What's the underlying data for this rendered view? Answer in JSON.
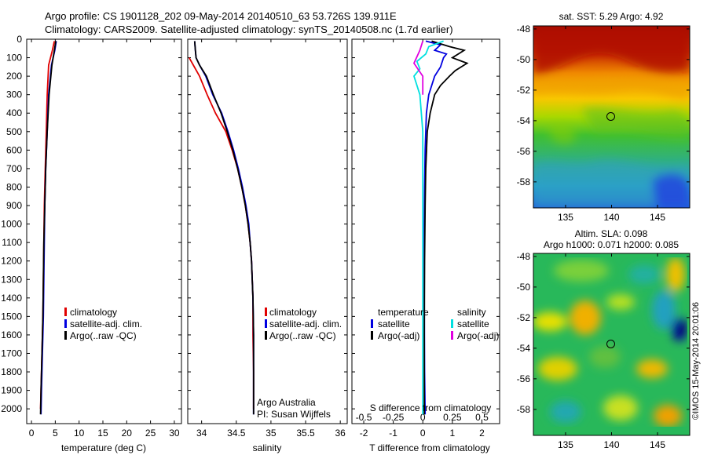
{
  "header": {
    "title_line1": "Argo profile: CS 1901128_202 09-May-2014 20140510_63 53.726S 139.911E",
    "title_line2": "Climatology: CARS2009. Satellite-adjusted climatology: synTS_20140508.nc (1.7d earlier)"
  },
  "colors": {
    "climatology": "#e00000",
    "satellite": "#0000e0",
    "argo": "#000000",
    "salinity_satellite": "#00e0e0",
    "salinity_argo": "#e000e0"
  },
  "legend1": {
    "climatology": "climatology",
    "satellite": "satellite-adj. clim.",
    "argo": "Argo(..raw -QC)"
  },
  "legend3": {
    "temperature_header": "temperature",
    "salinity_header": "salinity",
    "t_satellite": "satellite",
    "t_argo": "Argo(-adj)",
    "s_satellite": "satellite",
    "s_argo": "Argo(-adj)"
  },
  "credits": {
    "line1": "Argo Australia",
    "line2": "PI: Susan Wijffels"
  },
  "stamp": "©IMOS 15-May-2014 20:01:06",
  "chart_data": [
    {
      "type": "line",
      "ylim": [
        2080,
        0
      ],
      "yticks": [
        0,
        100,
        200,
        300,
        400,
        500,
        600,
        700,
        800,
        900,
        1000,
        1100,
        1200,
        1300,
        1400,
        1500,
        1600,
        1700,
        1800,
        1900,
        2000
      ],
      "xlabel": "temperature (deg C)",
      "xlim": [
        -1,
        31.5
      ],
      "xticks": [
        0,
        5,
        10,
        15,
        20,
        25,
        30
      ],
      "series": [
        {
          "name": "climatology",
          "color": "#e00000",
          "x": [
            4.8,
            4.4,
            3.6,
            3.3,
            3.1,
            2.9,
            2.7,
            2.6,
            2.5,
            2.4,
            2.3,
            2.2,
            2.1,
            2.0,
            1.9
          ],
          "y": [
            10,
            60,
            140,
            300,
            500,
            700,
            900,
            1100,
            1300,
            1500,
            1600,
            1700,
            1800,
            1900,
            2000
          ]
        },
        {
          "name": "satellite-adj. clim.",
          "color": "#0000e0",
          "x": [
            5.2,
            4.9,
            4.2,
            3.6,
            3.3,
            3.0,
            2.8,
            2.7,
            2.6,
            2.5,
            2.4,
            2.3,
            2.2,
            2.1,
            2.0
          ],
          "y": [
            10,
            60,
            140,
            300,
            500,
            700,
            900,
            1100,
            1300,
            1500,
            1600,
            1700,
            1800,
            1900,
            2030
          ]
        },
        {
          "name": "Argo(..raw -QC)",
          "color": "#000000",
          "x": [
            5.1,
            4.8,
            4.3,
            3.7,
            3.3,
            3.0,
            2.8,
            2.6,
            2.5,
            2.4,
            2.3,
            2.2,
            2.1,
            2.0,
            1.9
          ],
          "y": [
            10,
            60,
            140,
            300,
            500,
            700,
            900,
            1100,
            1300,
            1500,
            1600,
            1700,
            1800,
            1900,
            2030
          ]
        }
      ]
    },
    {
      "type": "line",
      "ylim": [
        2080,
        0
      ],
      "xlabel": "salinity",
      "xlim": [
        33.8,
        36.1
      ],
      "xticks": [
        34,
        34.5,
        35,
        35.5,
        36
      ],
      "series": [
        {
          "name": "climatology",
          "color": "#e00000",
          "x": [
            33.82,
            33.88,
            33.97,
            34.08,
            34.2,
            34.35,
            34.44,
            34.52,
            34.58,
            34.63,
            34.67,
            34.7,
            34.72,
            34.73,
            34.74,
            34.74,
            34.75,
            34.75
          ],
          "y": [
            100,
            140,
            200,
            300,
            400,
            500,
            600,
            700,
            800,
            900,
            1000,
            1100,
            1200,
            1300,
            1400,
            1600,
            1800,
            2000
          ]
        },
        {
          "name": "satellite-adj. clim.",
          "color": "#0000e0",
          "x": [
            33.9,
            33.91,
            33.92,
            33.97,
            34.06,
            34.16,
            34.29,
            34.38,
            34.46,
            34.53,
            34.59,
            34.64,
            34.68,
            34.7,
            34.72,
            34.73,
            34.74,
            34.75,
            34.75
          ],
          "y": [
            10,
            60,
            100,
            140,
            200,
            300,
            400,
            500,
            600,
            700,
            800,
            900,
            1000,
            1100,
            1200,
            1300,
            1400,
            1600,
            2030
          ]
        },
        {
          "name": "Argo(..raw -QC)",
          "color": "#000000",
          "x": [
            33.9,
            33.91,
            33.92,
            33.97,
            34.07,
            34.17,
            34.28,
            34.37,
            34.45,
            34.52,
            34.58,
            34.63,
            34.67,
            34.7,
            34.72,
            34.73,
            34.74,
            34.75,
            34.75
          ],
          "y": [
            10,
            60,
            100,
            140,
            200,
            300,
            400,
            500,
            600,
            700,
            800,
            900,
            1000,
            1100,
            1200,
            1300,
            1400,
            1600,
            2030
          ]
        }
      ]
    },
    {
      "type": "line",
      "ylim": [
        2080,
        0
      ],
      "xlabel": "T difference from climatology",
      "xlim": [
        -2.4,
        2.6
      ],
      "xticks": [
        -2,
        -1,
        0,
        1,
        2
      ],
      "top_axis_label": "S difference from climatology",
      "top_ticks": [
        "-0.5",
        "-0.25",
        "0",
        "0.25",
        "0.5"
      ],
      "top_tick_positions_T": [
        -2,
        -1,
        0,
        1,
        2
      ],
      "series": [
        {
          "name": "temperature satellite",
          "color": "#0000e0",
          "x": [
            0.1,
            0.6,
            0.4,
            0.8,
            0.7,
            0.6,
            0.4,
            0.2,
            0.12,
            0.08,
            0.06,
            0.05,
            0.05,
            0.06,
            0.08
          ],
          "y": [
            10,
            30,
            60,
            80,
            100,
            150,
            200,
            300,
            400,
            600,
            800,
            1000,
            1400,
            1800,
            2030
          ]
        },
        {
          "name": "temperature Argo(-adj)",
          "color": "#000000",
          "x": [
            0.3,
            0.9,
            1.4,
            1.0,
            1.5,
            1.1,
            0.9,
            0.6,
            0.4,
            0.25,
            0.15,
            0.1,
            0.08,
            0.06,
            0.05,
            0.05
          ],
          "y": [
            10,
            40,
            60,
            100,
            130,
            170,
            200,
            250,
            300,
            400,
            500,
            700,
            900,
            1200,
            1600,
            2030
          ]
        },
        {
          "name": "salinity satellite",
          "color": "#00e0e0",
          "x": [
            0.7,
            0.2,
            0.1,
            -0.2,
            -0.1,
            -0.3,
            -0.1,
            0.0,
            0.0,
            0.0,
            0.0,
            0.0,
            0.0
          ],
          "y": [
            10,
            40,
            80,
            120,
            160,
            200,
            300,
            500,
            800,
            1100,
            1400,
            1700,
            2030
          ]
        },
        {
          "name": "salinity Argo(-adj)",
          "color": "#e000e0",
          "x": [
            0.0,
            -0.1,
            -0.3,
            0.0,
            0.0,
            0.0
          ],
          "y": [
            10,
            60,
            130,
            200,
            250,
            300
          ]
        }
      ]
    },
    {
      "type": "heatmap",
      "title": "sat. SST: 5.29 Argo: 4.92",
      "xticks": [
        135,
        140,
        145
      ],
      "yticks": [
        -48,
        -50,
        -52,
        -54,
        -56,
        -58
      ],
      "xlim": [
        131.5,
        148.5
      ],
      "ylim": [
        -59.7,
        -47.8
      ],
      "marker": {
        "lon": 139.911,
        "lat": -53.726
      }
    },
    {
      "type": "heatmap",
      "title_line1": "Altim. SLA: 0.098",
      "title_line2": "Argo h1000: 0.071 h2000: 0.085",
      "xticks": [
        135,
        140,
        145
      ],
      "yticks": [
        -48,
        -50,
        -52,
        -54,
        -56,
        -58
      ],
      "xlim": [
        131.5,
        148.5
      ],
      "ylim": [
        -59.7,
        -47.8
      ],
      "marker": {
        "lon": 139.911,
        "lat": -53.726
      }
    }
  ]
}
